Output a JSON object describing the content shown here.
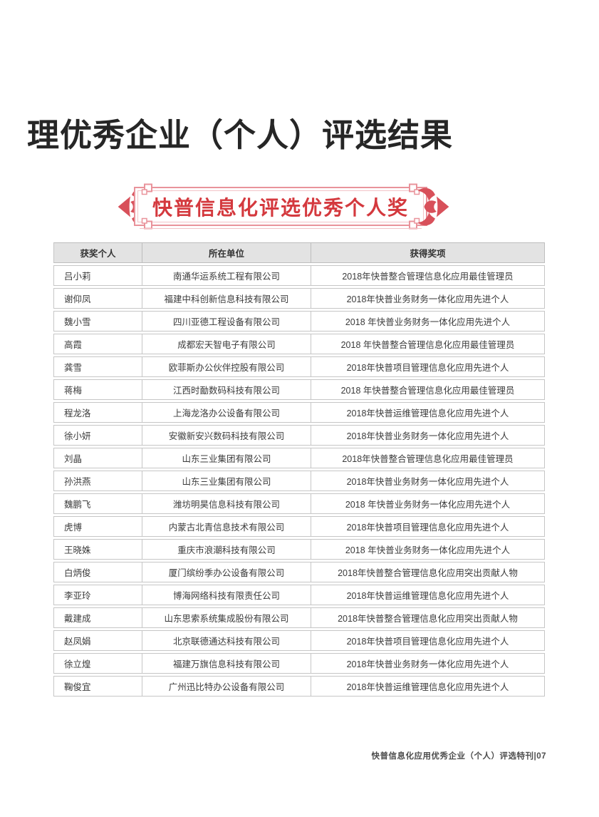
{
  "page": {
    "title": "理优秀企业（个人）评选结果",
    "footer": "快普信息化应用优秀企业（个人）评选特刊|07"
  },
  "banner": {
    "label": "快普信息化评选优秀个人奖",
    "left_ornament": "ruyi-scroll-left",
    "right_ornament": "ruyi-scroll-right"
  },
  "colors": {
    "accent-red": "#d4393e",
    "frame-pink": "#e9939b",
    "ornament-red": "#d8505a",
    "header-bg": "#e3e3e3",
    "border-gray": "#c6c6c6",
    "text-dark": "#3b3b3b"
  },
  "table": {
    "headers": [
      "获奖个人",
      "所在单位",
      "获得奖项"
    ],
    "rows": [
      {
        "name": "吕小莉",
        "company": "南通华运系统工程有限公司",
        "award": "2018年快普整合管理信息化应用最佳管理员"
      },
      {
        "name": "谢仰凤",
        "company": "福建中科创新信息科技有限公司",
        "award": "2018年快普业务财务一体化应用先进个人"
      },
      {
        "name": "魏小雪",
        "company": "四川亚德工程设备有限公司",
        "award": "2018 年快普业务财务一体化应用先进个人"
      },
      {
        "name": "高霞",
        "company": "成都宏天智电子有限公司",
        "award": "2018 年快普整合管理信息化应用最佳管理员"
      },
      {
        "name": "龚雪",
        "company": "欧菲斯办公伙伴控股有限公司",
        "award": "2018年快普项目管理信息化应用先进个人"
      },
      {
        "name": "蒋梅",
        "company": "江西时勔数码科技有限公司",
        "award": "2018 年快普整合管理信息化应用最佳管理员"
      },
      {
        "name": "程龙洛",
        "company": "上海龙洛办公设备有限公司",
        "award": "2018年快普运维管理信息化应用先进个人"
      },
      {
        "name": "徐小妍",
        "company": "安徽新安兴数码科技有限公司",
        "award": "2018年快普业务财务一体化应用先进个人"
      },
      {
        "name": "刘晶",
        "company": "山东三业集团有限公司",
        "award": "2018年快普整合管理信息化应用最佳管理员"
      },
      {
        "name": "孙洪燕",
        "company": "山东三业集团有限公司",
        "award": "2018年快普业务财务一体化应用先进个人"
      },
      {
        "name": "魏鹏飞",
        "company": "潍坊明昊信息科技有限公司",
        "award": "2018 年快普业务财务一体化应用先进个人"
      },
      {
        "name": "虎博",
        "company": "内蒙古北青信息技术有限公司",
        "award": "2018年快普项目管理信息化应用先进个人"
      },
      {
        "name": "王晓姝",
        "company": "重庆市浪潮科技有限公司",
        "award": "2018 年快普业务财务一体化应用先进个人"
      },
      {
        "name": "白炳俊",
        "company": "厦门缤纷季办公设备有限公司",
        "award": "2018年快普整合管理信息化应用突出贡献人物"
      },
      {
        "name": "李亚玲",
        "company": "博海网络科技有限责任公司",
        "award": "2018年快普运维管理信息化应用先进个人"
      },
      {
        "name": "戴建成",
        "company": "山东思索系统集成股份有限公司",
        "award": "2018年快普整合管理信息化应用突出贡献人物"
      },
      {
        "name": "赵凤娟",
        "company": "北京联德通达科技有限公司",
        "award": "2018年快普项目管理信息化应用先进个人"
      },
      {
        "name": "徐立煌",
        "company": "福建万旗信息科技有限公司",
        "award": "2018年快普业务财务一体化应用先进个人"
      },
      {
        "name": "鞠俊宜",
        "company": "广州迅比特办公设备有限公司",
        "award": "2018年快普运维管理信息化应用先进个人"
      }
    ]
  }
}
